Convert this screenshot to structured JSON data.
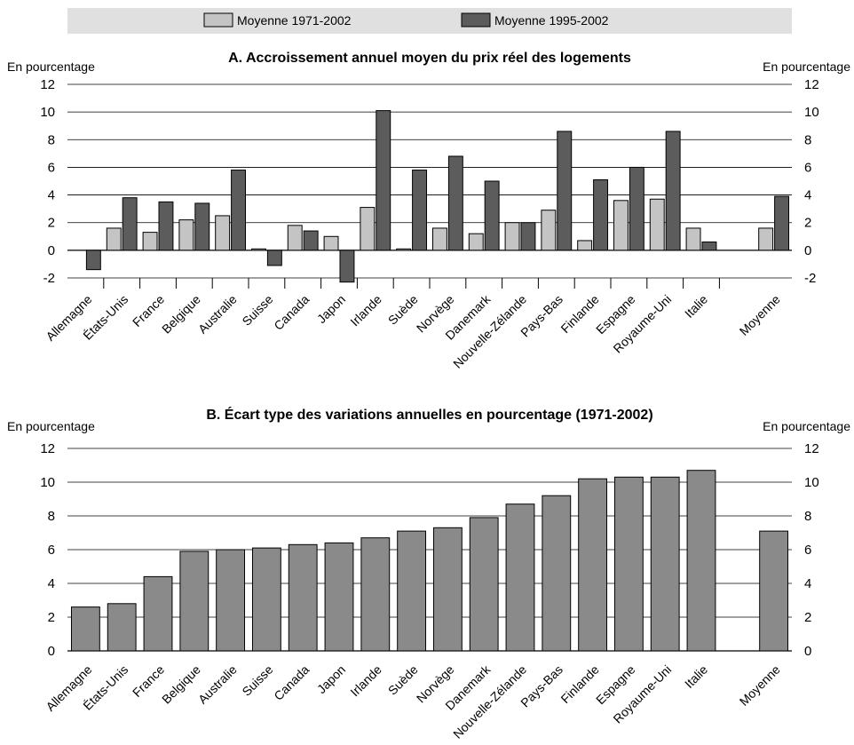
{
  "legend": {
    "position": "top",
    "items": [
      {
        "label": "Moyenne 1971-2002",
        "color": "#c4c4c4"
      },
      {
        "label": "Moyenne 1995-2002",
        "color": "#5c5c5c"
      }
    ]
  },
  "colors": {
    "bar_b": "#8a8a8a",
    "legend_bg": "#e0e0e0",
    "axis": "#000000"
  },
  "chart_data": [
    {
      "type": "bar",
      "title": "A. Accroissement annuel moyen du prix réel des logements",
      "ylabel_left": "En pourcentage",
      "ylabel_right": "En pourcentage",
      "ylim": [
        -2,
        12
      ],
      "yticks": [
        -2,
        0,
        2,
        4,
        6,
        8,
        10,
        12
      ],
      "grid": "horizontal",
      "categories": [
        "Allemagne",
        "États-Unis",
        "France",
        "Belgique",
        "Australie",
        "Suisse",
        "Canada",
        "Japon",
        "Irlande",
        "Suède",
        "Norvège",
        "Danemark",
        "Nouvelle-Zélande",
        "Pays-Bas",
        "Finlande",
        "Espagne",
        "Royaume-Uni",
        "Italie",
        "Moyenne"
      ],
      "series": [
        {
          "name": "Moyenne 1971-2002",
          "values": [
            0,
            1.6,
            1.3,
            2.2,
            2.5,
            0.1,
            1.8,
            1.0,
            3.1,
            0.1,
            1.6,
            1.2,
            2.0,
            2.9,
            0.7,
            3.6,
            3.7,
            1.6,
            1.6
          ]
        },
        {
          "name": "Moyenne 1995-2002",
          "values": [
            -1.4,
            3.8,
            3.5,
            3.4,
            5.8,
            -1.1,
            1.4,
            -2.3,
            10.1,
            5.8,
            6.8,
            5.0,
            2.0,
            8.6,
            5.1,
            6.0,
            8.6,
            0.6,
            3.9
          ]
        }
      ]
    },
    {
      "type": "bar",
      "title": "B. Écart type des variations annuelles en pourcentage (1971-2002)",
      "ylabel_left": "En pourcentage",
      "ylabel_right": "En pourcentage",
      "ylim": [
        0,
        12
      ],
      "yticks": [
        0,
        2,
        4,
        6,
        8,
        10,
        12
      ],
      "grid": "horizontal",
      "categories": [
        "Allemagne",
        "États-Unis",
        "France",
        "Belgique",
        "Australie",
        "Suisse",
        "Canada",
        "Japon",
        "Irlande",
        "Suède",
        "Norvège",
        "Danemark",
        "Nouvelle-Zélande",
        "Pays-Bas",
        "Finlande",
        "Espagne",
        "Royaume-Uni",
        "Italie",
        "Moyenne"
      ],
      "values": [
        2.6,
        2.8,
        4.4,
        5.9,
        6.0,
        6.1,
        6.3,
        6.4,
        6.7,
        7.1,
        7.3,
        7.9,
        8.7,
        9.2,
        10.2,
        10.3,
        10.3,
        10.7,
        7.1
      ]
    }
  ]
}
